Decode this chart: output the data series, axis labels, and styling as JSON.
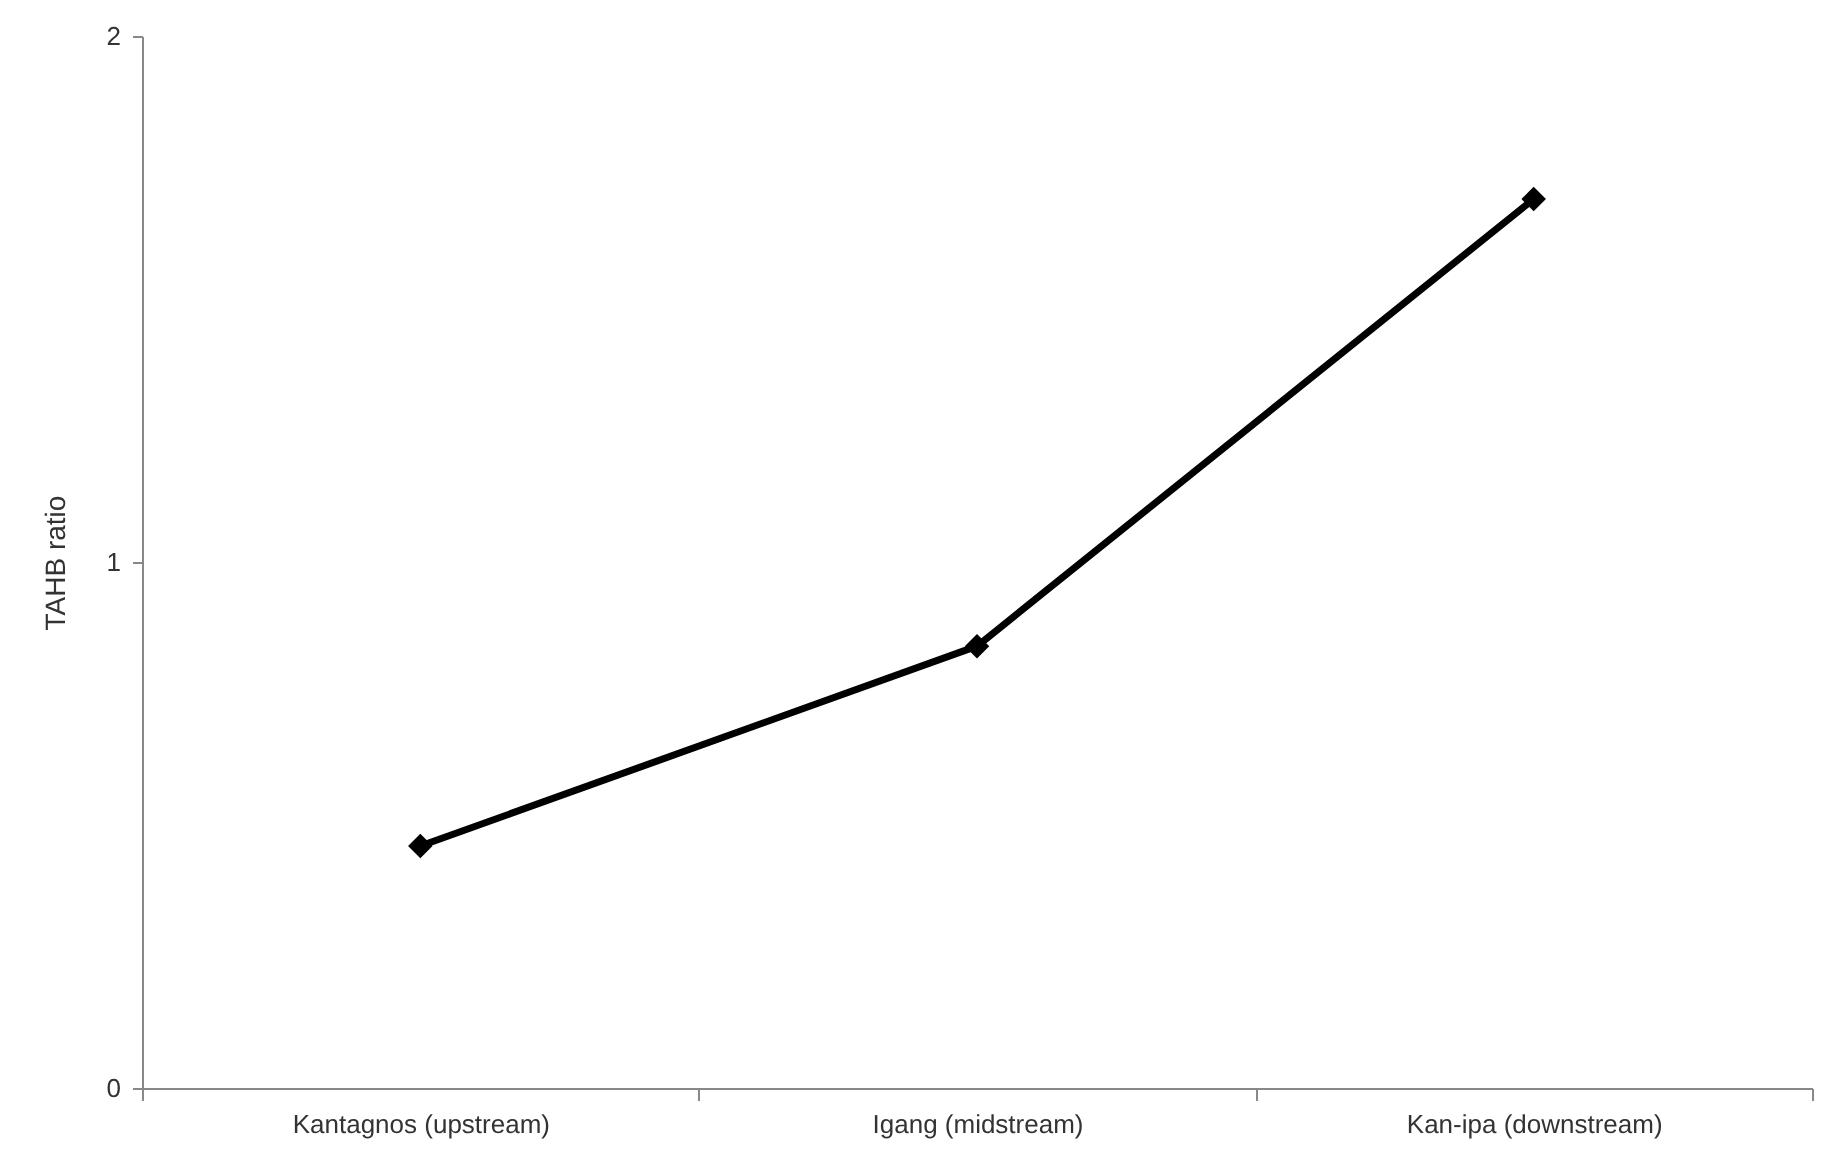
{
  "chart_data": {
    "type": "line",
    "ylabel": "TAHB ratio",
    "categories": [
      "Kantagnos (upstream)",
      "Igang (midstream)",
      "Kan-ipa (downstream)"
    ],
    "series": [
      {
        "color": "#000000",
        "values": [
          0.46,
          0.84,
          1.69
        ]
      }
    ],
    "ylim": [
      0,
      2
    ],
    "yticks": [
      0,
      1,
      2
    ],
    "marker": "diamond",
    "line_style": "solid"
  }
}
